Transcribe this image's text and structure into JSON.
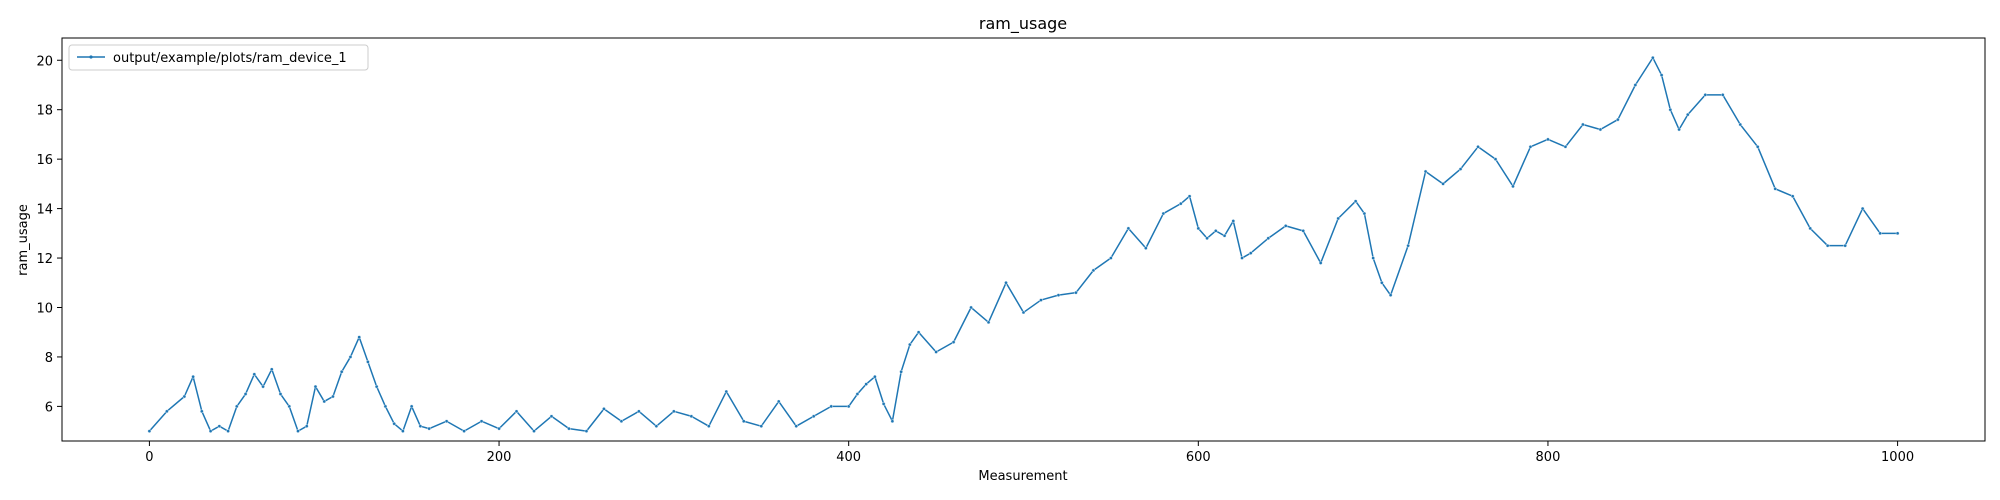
{
  "chart_data": {
    "type": "line",
    "title": "ram_usage",
    "xlabel": "Measurement",
    "ylabel": "ram_usage",
    "xlim": [
      -50,
      1050
    ],
    "ylim": [
      4.6,
      20.9
    ],
    "xticks": [
      0,
      200,
      400,
      600,
      800,
      1000
    ],
    "yticks": [
      6,
      8,
      10,
      12,
      14,
      16,
      18,
      20
    ],
    "grid": false,
    "legend_position": "top-left",
    "series": [
      {
        "name": "output/example/plots/ram_device_1",
        "color": "#1f77b4",
        "marker": "dot",
        "x": [
          0,
          10,
          20,
          25,
          30,
          35,
          40,
          45,
          50,
          55,
          60,
          65,
          70,
          75,
          80,
          85,
          90,
          95,
          100,
          105,
          110,
          115,
          120,
          125,
          130,
          135,
          140,
          145,
          150,
          155,
          160,
          170,
          180,
          190,
          200,
          210,
          220,
          230,
          240,
          250,
          260,
          270,
          280,
          290,
          300,
          310,
          320,
          330,
          340,
          350,
          360,
          370,
          380,
          390,
          400,
          405,
          410,
          415,
          420,
          425,
          430,
          435,
          440,
          450,
          460,
          470,
          480,
          490,
          500,
          510,
          520,
          530,
          540,
          550,
          560,
          570,
          580,
          590,
          595,
          600,
          605,
          610,
          615,
          620,
          625,
          630,
          640,
          650,
          660,
          670,
          680,
          690,
          695,
          700,
          705,
          710,
          720,
          730,
          740,
          750,
          760,
          770,
          780,
          790,
          800,
          810,
          820,
          830,
          840,
          850,
          860,
          865,
          870,
          875,
          880,
          890,
          900,
          910,
          920,
          930,
          940,
          950,
          960,
          970,
          980,
          990,
          1000
        ],
        "values": [
          5.0,
          5.8,
          6.4,
          7.2,
          5.8,
          5.0,
          5.2,
          5.0,
          6.0,
          6.5,
          7.3,
          6.8,
          7.5,
          6.5,
          6.0,
          5.0,
          5.2,
          6.8,
          6.2,
          6.4,
          7.4,
          8.0,
          8.8,
          7.8,
          6.8,
          6.0,
          5.3,
          5.0,
          6.0,
          5.2,
          5.1,
          5.4,
          5.0,
          5.4,
          5.1,
          5.8,
          5.0,
          5.6,
          5.1,
          5.0,
          5.9,
          5.4,
          5.8,
          5.2,
          5.8,
          5.6,
          5.2,
          6.6,
          5.4,
          5.2,
          6.2,
          5.2,
          5.6,
          6.0,
          6.0,
          6.5,
          6.9,
          7.2,
          6.1,
          5.4,
          7.4,
          8.5,
          9.0,
          8.2,
          8.6,
          10.0,
          9.4,
          11.0,
          9.8,
          10.3,
          10.5,
          10.6,
          11.5,
          12.0,
          13.2,
          12.4,
          13.8,
          14.2,
          14.5,
          13.2,
          12.8,
          13.1,
          12.9,
          13.5,
          12.0,
          12.2,
          12.8,
          13.3,
          13.1,
          11.8,
          13.6,
          14.3,
          13.8,
          12.0,
          11.0,
          10.5,
          12.5,
          15.5,
          15.0,
          15.6,
          16.5,
          16.0,
          14.9,
          16.5,
          16.8,
          16.5,
          17.4,
          17.2,
          17.6,
          19.0,
          20.1,
          19.4,
          18.0,
          17.2,
          17.8,
          18.6,
          18.6,
          17.4,
          16.5,
          14.8,
          14.5,
          13.2,
          12.5,
          12.5,
          14.0,
          13.0,
          13.0
        ]
      }
    ]
  }
}
